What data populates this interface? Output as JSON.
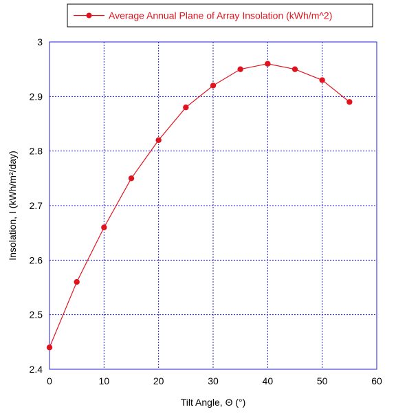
{
  "chart_data": {
    "type": "line",
    "title": "",
    "xlabel": "Tilt Angle, Θ (°)",
    "ylabel": "Insolation, I (kWh/m²/day)",
    "xlim": [
      0,
      60
    ],
    "ylim": [
      2.4,
      3.0
    ],
    "x_ticks": [
      "0",
      "10",
      "20",
      "30",
      "40",
      "50",
      "60"
    ],
    "y_ticks": [
      "2.4",
      "2.5",
      "2.6",
      "2.7",
      "2.8",
      "2.9",
      "3"
    ],
    "grid": true,
    "legend_position": "top",
    "series": [
      {
        "name": "Average Annual Plane of Array Insolation (kWh/m^2)",
        "color": "#e0141e",
        "x": [
          0,
          5,
          10,
          15,
          20,
          25,
          30,
          35,
          40,
          45,
          50,
          55
        ],
        "y": [
          2.44,
          2.56,
          2.66,
          2.75,
          2.82,
          2.88,
          2.92,
          2.95,
          2.96,
          2.95,
          2.93,
          2.89
        ]
      }
    ],
    "colors": {
      "grid": "#1f1fd6",
      "frame": "#1f1fd6",
      "series": "#e0141e"
    }
  }
}
